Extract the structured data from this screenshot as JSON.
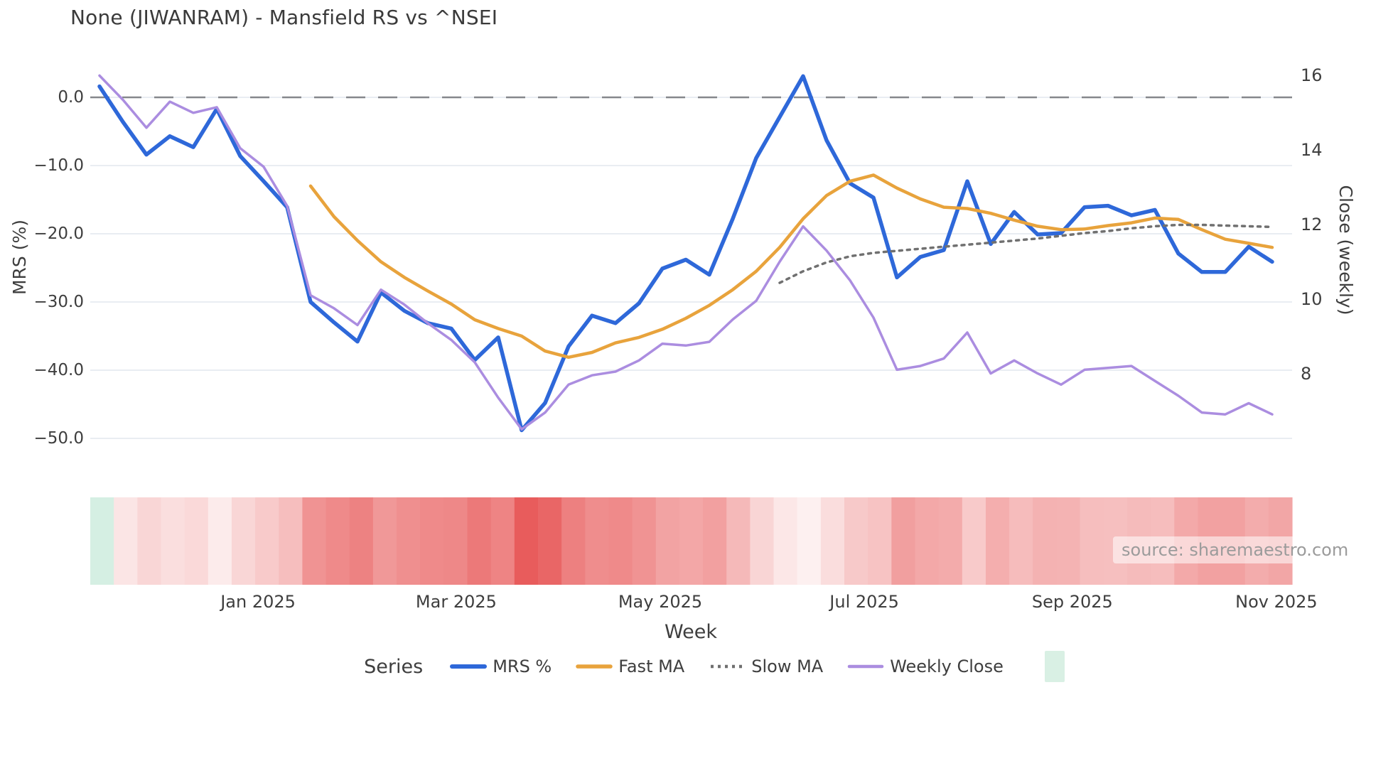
{
  "header": {
    "title": "None (JIWANRAM) - Mansfield RS vs ^NSEI"
  },
  "source_note": "source: sharemaestro.com",
  "legend": {
    "title": "Series",
    "extra_swatch_color": "#d9f0e4"
  },
  "chart_data": {
    "type": "line",
    "title": "None (JIWANRAM) - Mansfield RS vs ^NSEI",
    "grid": "horizontal-only",
    "legend_position": "bottom-center",
    "x_axis": {
      "title": "Week",
      "ticks": [
        {
          "label": "Jan 2025",
          "week": 6.76
        },
        {
          "label": "Mar 2025",
          "week": 15.21
        },
        {
          "label": "May 2025",
          "week": 23.91
        },
        {
          "label": "Jul 2025",
          "week": 32.61
        },
        {
          "label": "Sep 2025",
          "week": 41.48
        },
        {
          "label": "Nov 2025",
          "week": 50.18
        }
      ]
    },
    "left_axis": {
      "title": "MRS (%)",
      "range": [
        -53,
        5
      ],
      "ticks": [
        {
          "label": "0.0",
          "value": 0
        },
        {
          "label": "−10.0",
          "value": -10
        },
        {
          "label": "−20.0",
          "value": -20
        },
        {
          "label": "−30.0",
          "value": -30
        },
        {
          "label": "−40.0",
          "value": -40
        },
        {
          "label": "−50.0",
          "value": -50
        }
      ]
    },
    "right_axis": {
      "title": "Close (weekly)",
      "range": [
        6,
        16.5
      ],
      "ticks": [
        {
          "label": "16",
          "value": 16
        },
        {
          "label": "14",
          "value": 14
        },
        {
          "label": "12",
          "value": 12
        },
        {
          "label": "10",
          "value": 10
        },
        {
          "label": "8",
          "value": 8
        }
      ]
    },
    "zero_line": {
      "value": 0,
      "style": "dashed",
      "color": "#85878c"
    },
    "series": [
      {
        "name": "MRS %",
        "axis": "left",
        "color": "#2e68d9",
        "width": 5.5,
        "style": "solid",
        "start_week": 0,
        "values": [
          1.6,
          -3.6,
          -8.4,
          -5.7,
          -7.3,
          -1.7,
          -8.6,
          -12.3,
          -16.1,
          -30.0,
          -33.0,
          -35.8,
          -28.6,
          -31.3,
          -33.1,
          -33.9,
          -38.5,
          -35.2,
          -48.8,
          -44.8,
          -36.5,
          -32.0,
          -33.1,
          -30.2,
          -25.1,
          -23.8,
          -26.0,
          -17.8,
          -8.9,
          -2.9,
          3.1,
          -6.3,
          -12.6,
          -14.7,
          -26.4,
          -23.4,
          -22.4,
          -12.3,
          -21.5,
          -16.8,
          -20.1,
          -19.9,
          -16.1,
          -15.9,
          -17.3,
          -16.5,
          -22.9,
          -25.6,
          -25.6,
          -21.9,
          -24.1
        ]
      },
      {
        "name": "Fast MA",
        "axis": "left",
        "color": "#e8a33c",
        "width": 4.5,
        "style": "solid",
        "start_week": 9,
        "values": [
          -13.0,
          -17.5,
          -21.0,
          -24.1,
          -26.4,
          -28.4,
          -30.3,
          -32.6,
          -33.9,
          -35.0,
          -37.2,
          -38.1,
          -37.4,
          -36.0,
          -35.2,
          -34.0,
          -32.4,
          -30.5,
          -28.2,
          -25.5,
          -22.0,
          -17.8,
          -14.4,
          -12.3,
          -11.4,
          -13.3,
          -14.9,
          -16.1,
          -16.3,
          -17.0,
          -18.0,
          -18.9,
          -19.4,
          -19.3,
          -18.8,
          -18.4,
          -17.7,
          -17.9,
          -19.4,
          -20.8,
          -21.4,
          -22.0
        ]
      },
      {
        "name": "Slow MA",
        "axis": "left",
        "color": "#707070",
        "width": 3.5,
        "style": "dotted",
        "start_week": 29,
        "values": [
          -27.2,
          -25.5,
          -24.2,
          -23.3,
          -22.8,
          -22.5,
          -22.2,
          -21.9,
          -21.6,
          -21.3,
          -21.0,
          -20.7,
          -20.3,
          -19.9,
          -19.6,
          -19.2,
          -18.9,
          -18.7,
          -18.7,
          -18.8,
          -18.9,
          -19.0
        ]
      },
      {
        "name": "Weekly Close",
        "axis": "right",
        "color": "#ab8de0",
        "width": 3.5,
        "style": "solid",
        "start_week": 0,
        "values": [
          16.0,
          15.35,
          14.6,
          15.3,
          15.0,
          15.15,
          14.05,
          13.55,
          12.5,
          10.1,
          9.75,
          9.3,
          10.25,
          9.85,
          9.35,
          8.9,
          8.3,
          7.35,
          6.5,
          6.95,
          7.7,
          7.95,
          8.05,
          8.35,
          8.8,
          8.75,
          8.85,
          9.45,
          9.95,
          11.0,
          11.95,
          11.3,
          10.5,
          9.5,
          8.1,
          8.2,
          8.4,
          9.1,
          8.0,
          8.35,
          8.0,
          7.7,
          8.1,
          8.15,
          8.2,
          7.8,
          7.4,
          6.95,
          6.9,
          7.2,
          6.9
        ]
      }
    ],
    "heatmap_strip": {
      "colors": [
        "#d5efe3",
        "#fbe5e5",
        "#f9d6d6",
        "#fadede",
        "#fad9d9",
        "#fcebeb",
        "#f9d6d6",
        "#f8caca",
        "#f6bebe",
        "#f09393",
        "#ef8a8a",
        "#ed8282",
        "#f09898",
        "#ef8f8f",
        "#ef8a8a",
        "#ee8888",
        "#ec7979",
        "#ee8484",
        "#e85c5c",
        "#e96666",
        "#ed8080",
        "#ef8d8d",
        "#ef8a8a",
        "#f09393",
        "#f2a3a3",
        "#f3a7a7",
        "#f2a0a0",
        "#f5b9b9",
        "#f9d5d5",
        "#fce7e7",
        "#fdf0f0",
        "#fadddd",
        "#f7c9c9",
        "#f7c3c3",
        "#f19f9f",
        "#f3a8a8",
        "#f3abab",
        "#f8caca",
        "#f4aeae",
        "#f6bcbc",
        "#f4b2b2",
        "#f4b3b3",
        "#f6bebe",
        "#f6bfbf",
        "#f5bbbb",
        "#f6bdbd",
        "#f3a9a9",
        "#f2a1a1",
        "#f2a1a1",
        "#f3acac",
        "#f2a6a6"
      ]
    }
  }
}
